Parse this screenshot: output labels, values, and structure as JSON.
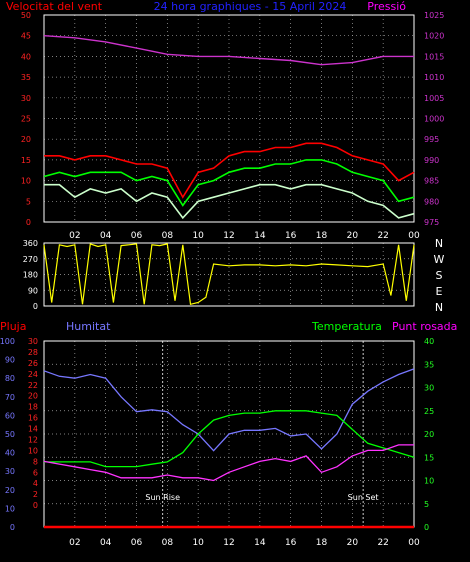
{
  "chart_data": [
    {
      "type": "line",
      "title": "24 hora graphiques - 15 April 2024",
      "left_axis": {
        "label": "Velocitat del vent",
        "ylim": [
          0,
          50
        ],
        "ticks": [
          0,
          5,
          10,
          15,
          20,
          25,
          30,
          35,
          40,
          45,
          50
        ]
      },
      "right_axis": {
        "label": "Pressió",
        "ylim": [
          975,
          1025
        ],
        "ticks": [
          975,
          980,
          985,
          990,
          995,
          1000,
          1005,
          1010,
          1015,
          1020,
          1025
        ]
      },
      "x_ticks": [
        "02",
        "04",
        "06",
        "08",
        "10",
        "12",
        "14",
        "16",
        "18",
        "20",
        "22",
        "00"
      ],
      "grid": true,
      "series": [
        {
          "color": "#ff0000",
          "axis": "left",
          "hours": [
            0,
            1,
            2,
            3,
            4,
            5,
            6,
            7,
            8,
            9,
            10,
            11,
            12,
            13,
            14,
            15,
            16,
            17,
            18,
            19,
            20,
            21,
            22,
            23,
            24
          ],
          "values": [
            16,
            16,
            15,
            16,
            16,
            15,
            14,
            14,
            13,
            6,
            12,
            13,
            16,
            17,
            17,
            18,
            18,
            19,
            19,
            18,
            16,
            15,
            14,
            10,
            12
          ]
        },
        {
          "color": "#00ff00",
          "axis": "left",
          "hours": [
            0,
            1,
            2,
            3,
            4,
            5,
            6,
            7,
            8,
            9,
            10,
            11,
            12,
            13,
            14,
            15,
            16,
            17,
            18,
            19,
            20,
            21,
            22,
            23,
            24
          ],
          "values": [
            11,
            12,
            11,
            12,
            12,
            12,
            10,
            11,
            10,
            4,
            9,
            10,
            12,
            13,
            13,
            14,
            14,
            15,
            15,
            14,
            12,
            11,
            10,
            5,
            6
          ]
        },
        {
          "color": "#ccffcc",
          "axis": "left",
          "hours": [
            0,
            1,
            2,
            3,
            4,
            5,
            6,
            7,
            8,
            9,
            10,
            11,
            12,
            13,
            14,
            15,
            16,
            17,
            18,
            19,
            20,
            21,
            22,
            23,
            24
          ],
          "values": [
            9,
            9,
            6,
            8,
            7,
            8,
            5,
            7,
            6,
            1,
            5,
            6,
            7,
            8,
            9,
            9,
            8,
            9,
            9,
            8,
            7,
            5,
            4,
            1,
            2
          ]
        },
        {
          "color": "#cc33cc",
          "axis": "right",
          "hours": [
            0,
            2,
            4,
            6,
            8,
            10,
            12,
            14,
            16,
            18,
            20,
            22,
            24
          ],
          "values": [
            1020,
            1019.5,
            1018.5,
            1017,
            1015.5,
            1015,
            1015,
            1014.5,
            1014,
            1013,
            1013.5,
            1015,
            1015
          ]
        }
      ]
    },
    {
      "type": "line",
      "ylim": [
        0,
        360
      ],
      "yticks": [
        0,
        90,
        180,
        270,
        360
      ],
      "compass": [
        "N",
        "W",
        "S",
        "E",
        "N"
      ],
      "grid": true,
      "series": [
        {
          "color": "#ffff00",
          "hours": [
            0,
            0.5,
            1,
            1.5,
            2,
            2.5,
            3,
            3.5,
            4,
            4.5,
            5,
            5.5,
            6,
            6.5,
            7,
            7.5,
            8,
            8.5,
            9,
            9.5,
            10,
            10.5,
            11,
            12,
            13,
            14,
            15,
            16,
            17,
            18,
            19,
            20,
            21,
            22,
            22.5,
            23,
            23.5,
            24
          ],
          "values": [
            350,
            20,
            350,
            340,
            350,
            10,
            355,
            340,
            350,
            20,
            345,
            350,
            355,
            10,
            350,
            345,
            355,
            30,
            350,
            10,
            20,
            50,
            240,
            230,
            235,
            235,
            230,
            235,
            230,
            240,
            235,
            230,
            225,
            240,
            60,
            350,
            30,
            350
          ]
        }
      ]
    },
    {
      "type": "line",
      "labels": {
        "rain": "Pluja",
        "humidity": "Humitat",
        "temperature": "Temperatura",
        "dewpoint": "Punt rosada"
      },
      "left_axes": {
        "rain": {
          "ylim": [
            0,
            100
          ],
          "ticks": [
            0,
            10,
            20,
            30,
            40,
            50,
            60,
            70,
            80,
            90,
            100
          ]
        },
        "dewpoint": {
          "ylim": [
            -4,
            30
          ],
          "ticks": [
            0,
            2,
            4,
            6,
            8,
            10,
            12,
            14,
            16,
            18,
            20,
            22,
            24,
            26,
            28,
            30
          ]
        }
      },
      "right_axis": {
        "label": "Temperatura",
        "ylim": [
          0,
          40
        ],
        "ticks": [
          0,
          5,
          10,
          15,
          20,
          25,
          30,
          35,
          40
        ]
      },
      "x_ticks": [
        "02",
        "04",
        "06",
        "08",
        "10",
        "12",
        "14",
        "16",
        "18",
        "20",
        "22",
        "00"
      ],
      "annotations": [
        {
          "text": "Sun Rise",
          "hour": 7.7
        },
        {
          "text": "Sun Set",
          "hour": 20.7
        }
      ],
      "grid": true,
      "series": [
        {
          "color": "#ff0000",
          "axis": "rain",
          "hours": [
            0,
            24
          ],
          "values": [
            0,
            0
          ]
        },
        {
          "color": "#7777ff",
          "axis": "rain",
          "hours": [
            0,
            1,
            2,
            3,
            4,
            5,
            6,
            7,
            8,
            9,
            10,
            11,
            12,
            13,
            14,
            15,
            16,
            17,
            18,
            19,
            20,
            21,
            22,
            23,
            24
          ],
          "values": [
            84,
            81,
            80,
            82,
            80,
            70,
            62,
            63,
            62,
            55,
            50,
            41,
            50,
            52,
            52,
            53,
            49,
            50,
            42,
            50,
            66,
            73,
            78,
            82,
            85
          ]
        },
        {
          "color": "#00ff00",
          "axis": "right",
          "hours": [
            0,
            1,
            2,
            3,
            4,
            5,
            6,
            7,
            8,
            9,
            10,
            11,
            12,
            13,
            14,
            15,
            16,
            17,
            18,
            19,
            20,
            21,
            22,
            23,
            24
          ],
          "values": [
            14,
            14,
            14,
            14,
            13,
            13,
            13,
            13.5,
            14,
            16,
            20,
            23,
            24,
            24.5,
            24.5,
            25,
            25,
            25,
            24.5,
            24,
            21,
            18,
            17,
            16,
            15
          ]
        },
        {
          "color": "#ff33ff",
          "axis": "dewpoint",
          "hours": [
            0,
            1,
            2,
            3,
            4,
            5,
            6,
            7,
            8,
            9,
            10,
            11,
            12,
            13,
            14,
            15,
            16,
            17,
            18,
            19,
            20,
            21,
            22,
            23,
            24
          ],
          "values": [
            8,
            7.5,
            7,
            6.5,
            6,
            5,
            5,
            5,
            5.5,
            5,
            5,
            4.5,
            6,
            7,
            8,
            8.5,
            8,
            9,
            6,
            7,
            9,
            10,
            10,
            11,
            11
          ]
        }
      ]
    }
  ]
}
